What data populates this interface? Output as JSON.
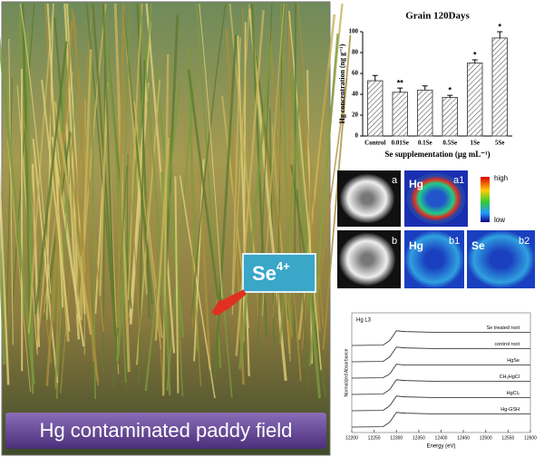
{
  "banner": "Hg contaminated paddy field",
  "callout": {
    "base": "Se",
    "charge": "4+"
  },
  "imaging": {
    "panels": [
      "a",
      "a1",
      "b",
      "b1",
      "b2"
    ],
    "elements": [
      "Hg",
      "Hg",
      "Se"
    ],
    "scale_high": "high",
    "scale_low": "low"
  },
  "chart_data": [
    {
      "type": "bar",
      "title": "Grain 120Days",
      "x_label": "Se supplementation (μg mL⁻¹)",
      "y_label": "Hg concentration (ng g⁻¹)",
      "categories": [
        "Control",
        "0.01Se",
        "0.1Se",
        "0.5Se",
        "1Se",
        "5Se"
      ],
      "values": [
        53,
        42,
        44,
        37,
        70,
        94
      ],
      "errors": [
        5,
        4,
        4,
        2,
        3,
        6
      ],
      "annotations": [
        null,
        "**",
        null,
        "*",
        "*",
        "*"
      ],
      "ylim": [
        0,
        100
      ],
      "yticks": [
        0,
        20,
        40,
        60,
        80,
        100
      ],
      "color": "#555555"
    },
    {
      "type": "line",
      "title": "Hg L3",
      "x_label": "Energy (eV)",
      "y_label": "Normalized Absorbance",
      "x": [
        12200,
        12270,
        12285,
        12300,
        12320,
        12400,
        12600
      ],
      "series": [
        {
          "name": "Se treated root",
          "color": "#222222",
          "values": [
            5,
            5.02,
            5.3,
            5.9,
            5.85,
            5.8,
            5.8
          ]
        },
        {
          "name": "control root",
          "color": "#222222",
          "values": [
            4,
            4.02,
            4.3,
            4.9,
            4.85,
            4.8,
            4.8
          ]
        },
        {
          "name": "HgSe",
          "color": "#222222",
          "values": [
            3,
            3.02,
            3.25,
            3.85,
            3.8,
            3.8,
            3.8
          ]
        },
        {
          "name": "CH₃HgCl",
          "color": "#222222",
          "values": [
            2,
            2.02,
            2.3,
            2.9,
            2.85,
            2.8,
            2.8
          ]
        },
        {
          "name": "HgCl₂",
          "color": "#222222",
          "values": [
            1,
            1.02,
            1.3,
            1.9,
            1.85,
            1.8,
            1.8
          ]
        },
        {
          "name": "Hg-GSH",
          "color": "#222222",
          "values": [
            0,
            0.02,
            0.3,
            0.9,
            0.85,
            0.8,
            0.8
          ]
        }
      ],
      "xlim": [
        12200,
        12600
      ],
      "xticks": [
        12200,
        12250,
        12300,
        12350,
        12400,
        12450,
        12500,
        12550,
        12600
      ],
      "ylim": [
        0,
        7
      ]
    }
  ]
}
